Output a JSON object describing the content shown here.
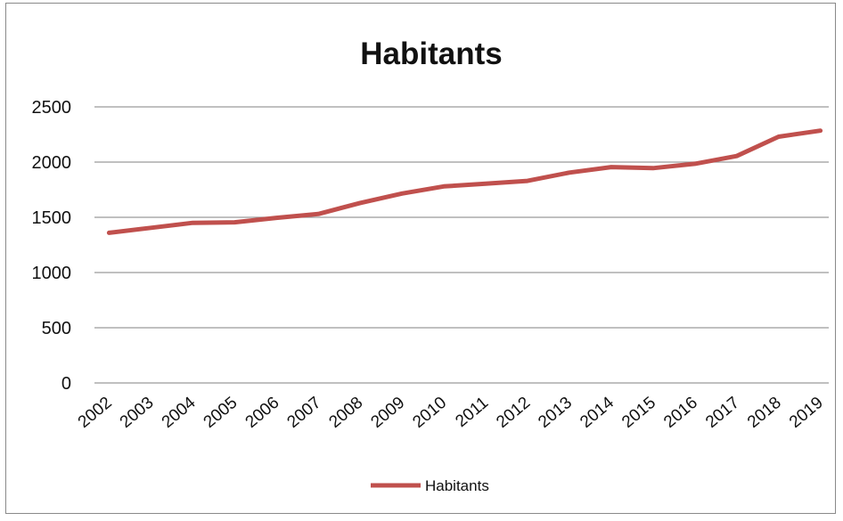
{
  "chart_data": {
    "type": "line",
    "title": "Habitants",
    "xlabel": "",
    "ylabel": "",
    "categories": [
      "2002",
      "2003",
      "2004",
      "2005",
      "2006",
      "2007",
      "2008",
      "2009",
      "2010",
      "2011",
      "2012",
      "2013",
      "2014",
      "2015",
      "2016",
      "2017",
      "2018",
      "2019"
    ],
    "series": [
      {
        "name": "Habitants",
        "color": "#c0504d",
        "values": [
          1360,
          1405,
          1450,
          1455,
          1495,
          1530,
          1630,
          1715,
          1780,
          1805,
          1830,
          1905,
          1955,
          1945,
          1985,
          2055,
          2230,
          2285
        ]
      }
    ],
    "ylim": [
      0,
      2500
    ],
    "yticks": [
      0,
      500,
      1000,
      1500,
      2000,
      2500
    ],
    "grid": true,
    "legend": "bottom"
  }
}
